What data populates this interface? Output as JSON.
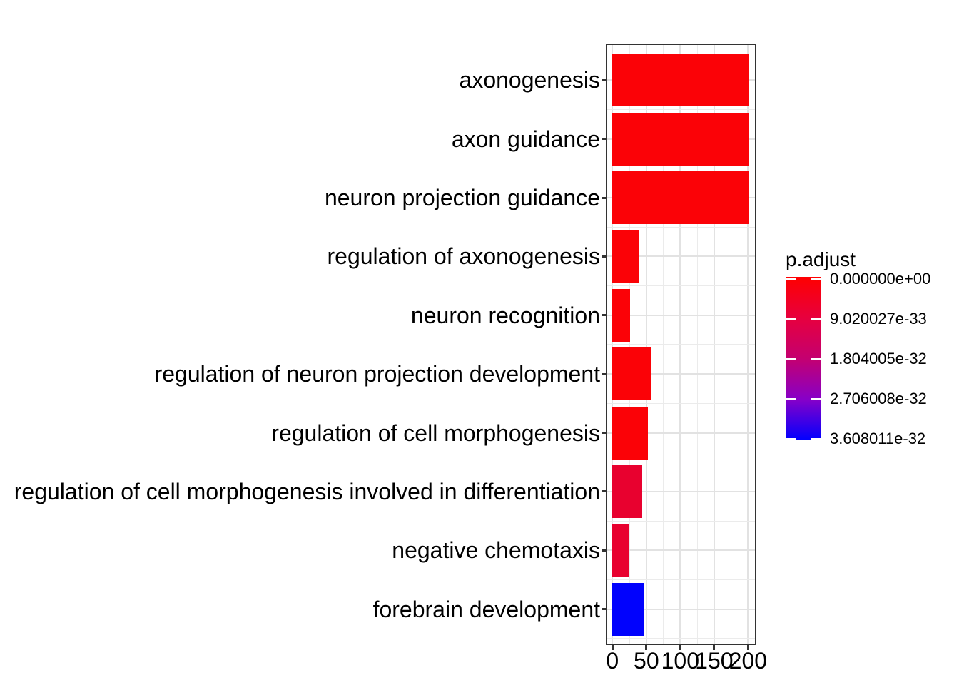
{
  "chart_data": {
    "type": "bar",
    "orientation": "horizontal",
    "title": "",
    "xlabel": "",
    "ylabel": "",
    "categories": [
      "axonogenesis",
      "axon guidance",
      "neuron projection guidance",
      "regulation of axonogenesis",
      "neuron recognition",
      "regulation of neuron projection development",
      "regulation of cell morphogenesis",
      "regulation of cell morphogenesis involved in differentiation",
      "negative chemotaxis",
      "forebrain development"
    ],
    "values": [
      201,
      201,
      201,
      40,
      26,
      56,
      52,
      44,
      24,
      46
    ],
    "bar_colors": [
      "#FB0207",
      "#FB0207",
      "#FB0207",
      "#FB0207",
      "#FB0207",
      "#FB0207",
      "#FB0207",
      "#E8012F",
      "#E8012F",
      "#0102FD"
    ],
    "xlim": [
      0,
      211
    ],
    "x_ticks": [
      0,
      50,
      100,
      150,
      200
    ],
    "x_tick_labels": [
      "0",
      "50",
      "100",
      "150",
      "200"
    ],
    "x_minor_ticks": [
      25,
      75,
      125,
      175
    ],
    "grid": true,
    "grid_major_color": "#E2E2E2",
    "grid_minor_color": "#EBEBEB",
    "panel_border_color": "#333333",
    "legend": {
      "position": "right",
      "title": "p.adjust",
      "labels": [
        "0.000000e+00",
        "9.020027e-33",
        "1.804005e-32",
        "2.706008e-32",
        "3.608011e-32"
      ],
      "gradient_stops": [
        "#FF0000",
        "#E7003E",
        "#C40070",
        "#8700C8",
        "#0000FF"
      ],
      "gradient_positions_pct": [
        0,
        25,
        50,
        75,
        100
      ]
    }
  }
}
